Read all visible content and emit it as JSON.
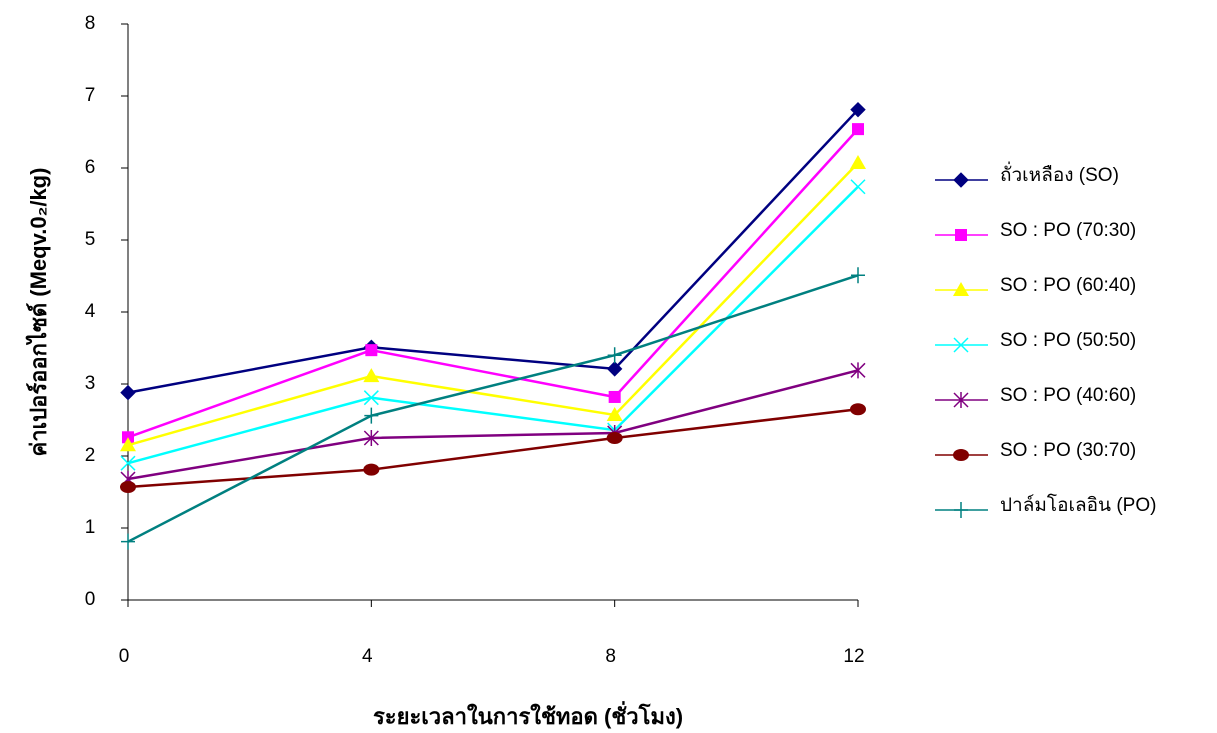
{
  "chart_data": {
    "type": "line",
    "y_label": "ค่าเปอร์ออกไซด์ (Meqv.0₂/kg)",
    "x_label": "ระยะเวลาในการใช้ทอด (ชั่วโมง)",
    "x": [
      0,
      4,
      8,
      12
    ],
    "xlim": [
      0,
      12
    ],
    "xticks": [
      0,
      4,
      8,
      12
    ],
    "ylim": [
      0,
      8
    ],
    "yticks": [
      0,
      1,
      2,
      3,
      4,
      5,
      6,
      7,
      8
    ],
    "grid": false,
    "legend": "right",
    "series": [
      {
        "name": "ถั่วเหลือง  (SO)",
        "color": "#000080",
        "marker": "diamond",
        "values": [
          2.88,
          3.51,
          3.21,
          6.81
        ]
      },
      {
        "name": "SO : PO (70:30)",
        "color": "#ff00ff",
        "marker": "square",
        "values": [
          2.26,
          3.47,
          2.82,
          6.54
        ]
      },
      {
        "name": "SO : PO (60:40)",
        "color": "#ffff00",
        "marker": "triangle",
        "values": [
          2.15,
          3.11,
          2.57,
          6.07
        ]
      },
      {
        "name": "SO : PO (50:50)",
        "color": "#00ffff",
        "marker": "x",
        "values": [
          1.9,
          2.81,
          2.36,
          5.74
        ]
      },
      {
        "name": "SO : PO (40:60)",
        "color": "#800080",
        "marker": "star",
        "values": [
          1.68,
          2.25,
          2.32,
          3.19
        ]
      },
      {
        "name": "SO : PO (30:70)",
        "color": "#800000",
        "marker": "circle",
        "values": [
          1.57,
          1.81,
          2.25,
          2.65
        ]
      },
      {
        "name": "ปาล์มโอเลอิน (PO)",
        "color": "#008080",
        "marker": "plus",
        "values": [
          0.81,
          2.56,
          3.4,
          4.51
        ]
      }
    ]
  }
}
